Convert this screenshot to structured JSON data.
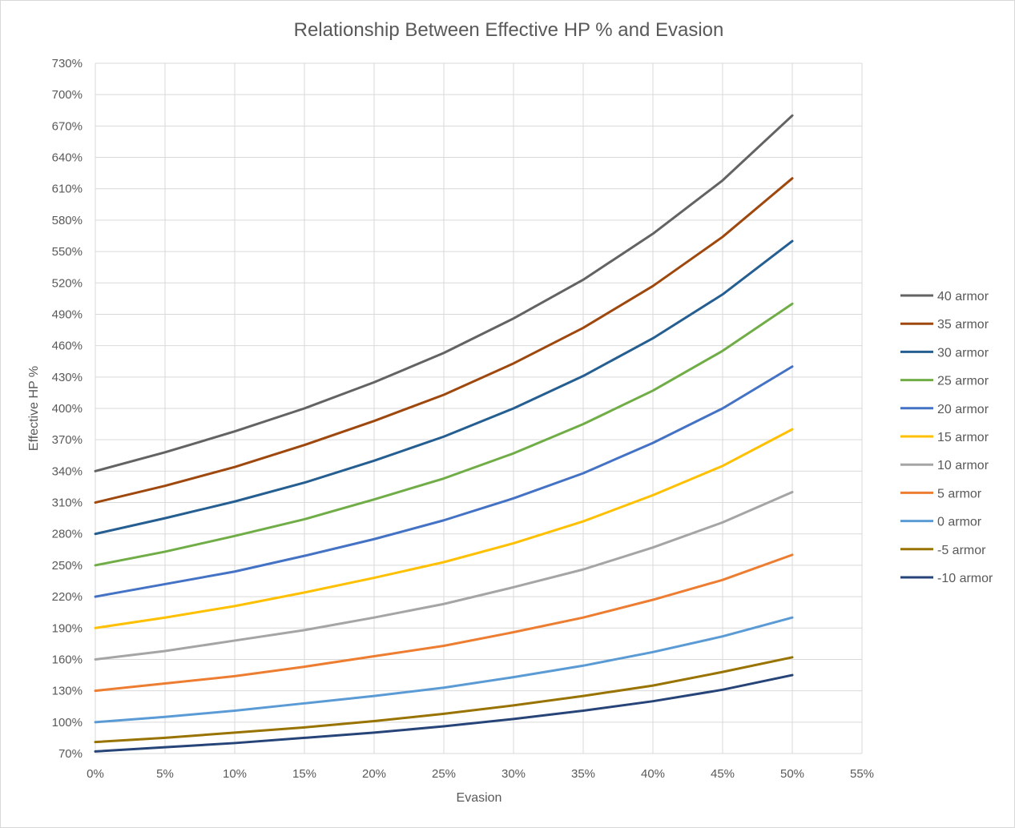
{
  "chart_data": {
    "type": "line",
    "title": "Relationship Between Effective HP % and Evasion",
    "xlabel": "Evasion",
    "ylabel": "Effective HP %",
    "xlim": [
      0,
      55
    ],
    "ylim": [
      70,
      730
    ],
    "x_ticks": [
      "0%",
      "5%",
      "10%",
      "15%",
      "20%",
      "25%",
      "30%",
      "35%",
      "40%",
      "45%",
      "50%",
      "55%"
    ],
    "y_ticks": [
      "70%",
      "100%",
      "130%",
      "160%",
      "190%",
      "220%",
      "250%",
      "280%",
      "310%",
      "340%",
      "370%",
      "400%",
      "430%",
      "460%",
      "490%",
      "520%",
      "550%",
      "580%",
      "610%",
      "640%",
      "670%",
      "700%",
      "730%"
    ],
    "grid": true,
    "legend_position": "right",
    "x": [
      0,
      5,
      10,
      15,
      20,
      25,
      30,
      35,
      40,
      45,
      50
    ],
    "series": [
      {
        "name": "40 armor",
        "color": "#636363",
        "values": [
          340,
          358,
          378,
          400,
          425,
          453,
          486,
          523,
          567,
          618,
          680
        ]
      },
      {
        "name": "35 armor",
        "color": "#9e480e",
        "values": [
          310,
          326,
          344,
          365,
          388,
          413,
          443,
          477,
          517,
          564,
          620
        ]
      },
      {
        "name": "30 armor",
        "color": "#255e91",
        "values": [
          280,
          295,
          311,
          329,
          350,
          373,
          400,
          431,
          467,
          509,
          560
        ]
      },
      {
        "name": "25 armor",
        "color": "#70ad47",
        "values": [
          250,
          263,
          278,
          294,
          313,
          333,
          357,
          385,
          417,
          455,
          500
        ]
      },
      {
        "name": "20 armor",
        "color": "#4472c4",
        "values": [
          220,
          232,
          244,
          259,
          275,
          293,
          314,
          338,
          367,
          400,
          440
        ]
      },
      {
        "name": "15 armor",
        "color": "#ffc000",
        "values": [
          190,
          200,
          211,
          224,
          238,
          253,
          271,
          292,
          317,
          345,
          380
        ]
      },
      {
        "name": "10 armor",
        "color": "#a5a5a5",
        "values": [
          160,
          168,
          178,
          188,
          200,
          213,
          229,
          246,
          267,
          291,
          320
        ]
      },
      {
        "name": "5 armor",
        "color": "#ed7d31",
        "values": [
          130,
          137,
          144,
          153,
          163,
          173,
          186,
          200,
          217,
          236,
          260
        ]
      },
      {
        "name": "0 armor",
        "color": "#5b9bd5",
        "values": [
          100,
          105,
          111,
          118,
          125,
          133,
          143,
          154,
          167,
          182,
          200
        ]
      },
      {
        "name": "-5 armor",
        "color": "#997300",
        "values": [
          81,
          85,
          90,
          95,
          101,
          108,
          116,
          125,
          135,
          148,
          162
        ]
      },
      {
        "name": "-10 armor",
        "color": "#264478",
        "values": [
          72,
          76,
          80,
          85,
          90,
          96,
          103,
          111,
          120,
          131,
          145
        ]
      }
    ]
  }
}
